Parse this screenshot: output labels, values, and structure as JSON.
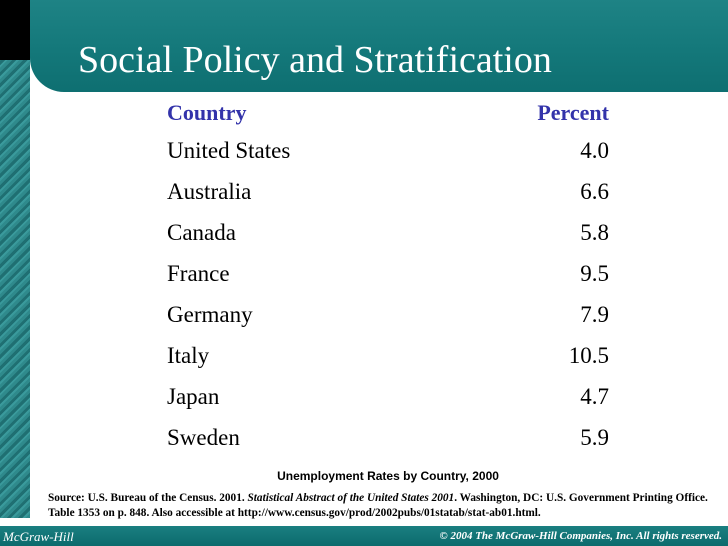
{
  "title": "Social Policy and Stratification",
  "table": {
    "headers": {
      "country": "Country",
      "percent": "Percent"
    },
    "rows": [
      {
        "country": "United States",
        "percent": "4.0"
      },
      {
        "country": "Australia",
        "percent": "6.6"
      },
      {
        "country": "Canada",
        "percent": "5.8"
      },
      {
        "country": "France",
        "percent": "9.5"
      },
      {
        "country": "Germany",
        "percent": "7.9"
      },
      {
        "country": "Italy",
        "percent": "10.5"
      },
      {
        "country": "Japan",
        "percent": "4.7"
      },
      {
        "country": "Sweden",
        "percent": "5.9"
      }
    ]
  },
  "caption": "Unemployment Rates by Country, 2000",
  "source": {
    "prefix": "Source: U.S. Bureau of the Census. 2001. ",
    "italic": "Statistical Abstract of the United States 2001",
    "suffix": ". Washington, DC: U.S. Government Printing Office. Table 1353 on p. 848. Also accessible at http://www.census.gov/prod/2002pubs/01statab/stat-ab01.html."
  },
  "footer": {
    "left": "McGraw-Hill",
    "right": "© 2004 The McGraw-Hill Companies, Inc. All rights reserved."
  }
}
